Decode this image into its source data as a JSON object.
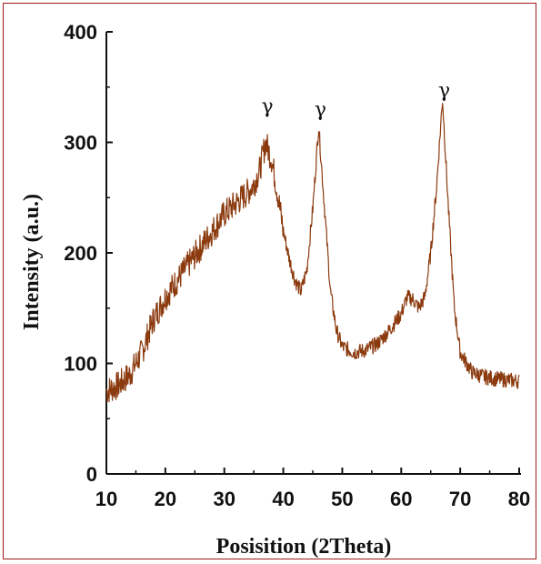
{
  "chart_data": {
    "type": "line",
    "title": "",
    "xlabel": "Posisition (2Theta)",
    "ylabel": "Intensity (a.u.)",
    "xlim": [
      10,
      80
    ],
    "ylim": [
      0,
      400
    ],
    "xticks": [
      "10",
      "20",
      "30",
      "40",
      "50",
      "60",
      "70",
      "80"
    ],
    "yticks": [
      "0",
      "100",
      "200",
      "300",
      "400"
    ],
    "grid": false,
    "legend": "none",
    "series_color": "#8b3a0e",
    "series": [
      {
        "name": "",
        "x": [
          10,
          12,
          14,
          16,
          18,
          20,
          22,
          24,
          26,
          28,
          30,
          32,
          34,
          35,
          36,
          37,
          38,
          39,
          40,
          41,
          42,
          43,
          44,
          45,
          46,
          47,
          48,
          49,
          50,
          52,
          54,
          56,
          58,
          60,
          61,
          62,
          63,
          64,
          65,
          66,
          67,
          68,
          69,
          70,
          72,
          74,
          76,
          78,
          80
        ],
        "values": [
          75,
          80,
          90,
          110,
          140,
          160,
          175,
          190,
          205,
          220,
          235,
          245,
          255,
          262,
          275,
          300,
          285,
          255,
          220,
          195,
          175,
          165,
          185,
          240,
          315,
          240,
          165,
          130,
          115,
          110,
          112,
          118,
          130,
          145,
          160,
          158,
          150,
          160,
          200,
          260,
          340,
          240,
          150,
          110,
          92,
          88,
          86,
          85,
          84
        ]
      }
    ],
    "annotations": [
      {
        "text": "γ",
        "x": 37.3
      },
      {
        "text": "γ",
        "x": 46.3
      },
      {
        "text": "γ",
        "x": 67.3
      }
    ]
  }
}
